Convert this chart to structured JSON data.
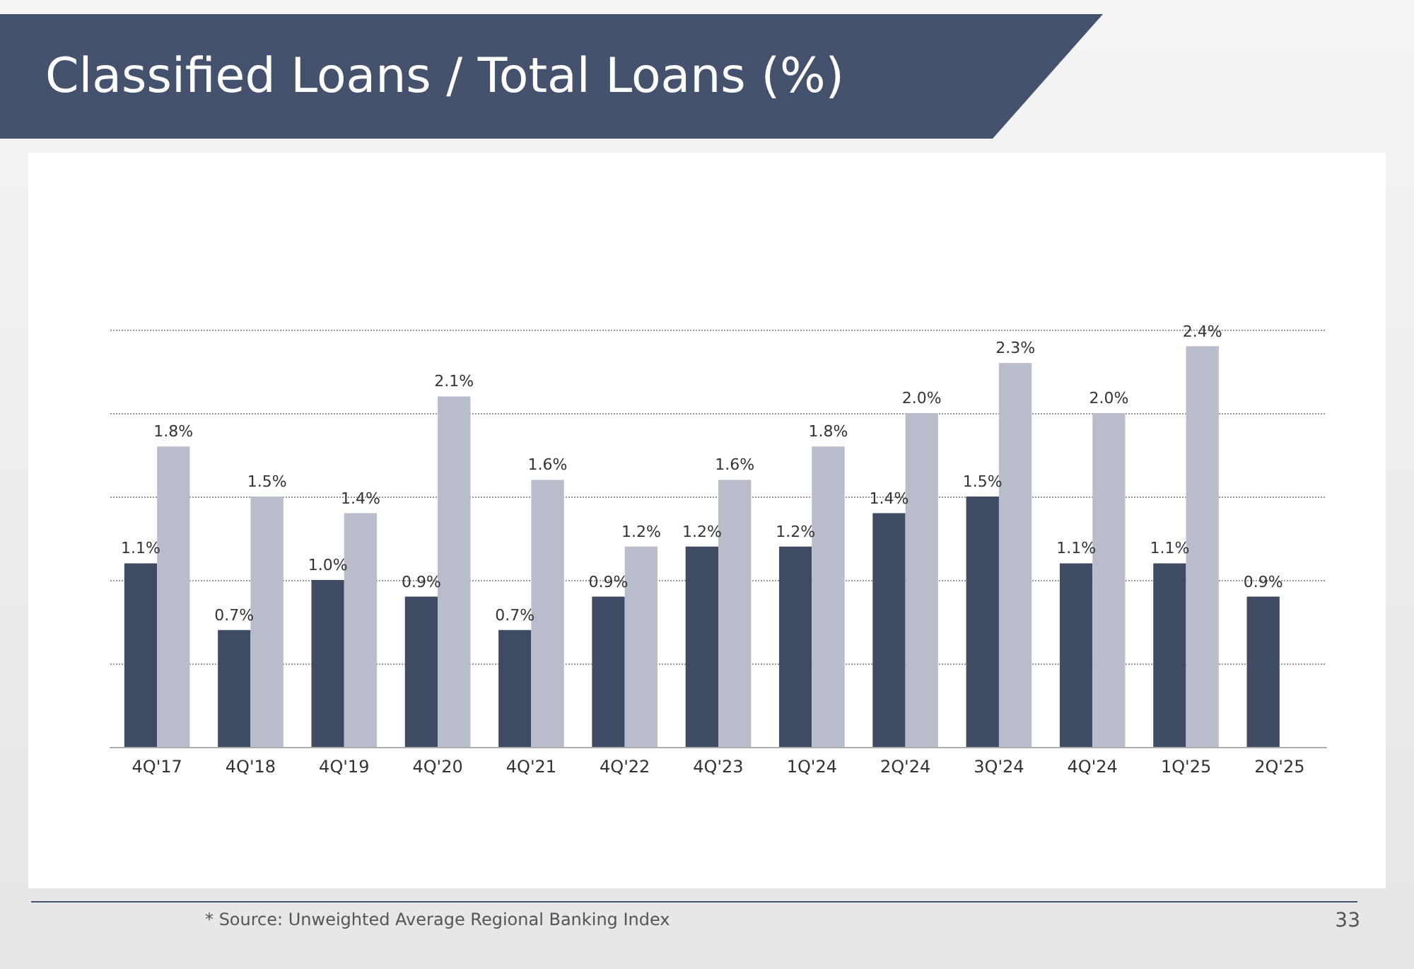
{
  "chart_data": {
    "type": "bar",
    "title": "Classified Loans / Total Loans (%)",
    "categories": [
      "4Q'17",
      "4Q'18",
      "4Q'19",
      "4Q'20",
      "4Q'21",
      "4Q'22",
      "4Q'23",
      "1Q'24",
      "2Q'24",
      "3Q'24",
      "4Q'24",
      "1Q'25",
      "2Q'25"
    ],
    "series": [
      {
        "color": "#3f4a63",
        "values": [
          1.1,
          0.7,
          1.0,
          0.9,
          0.7,
          0.9,
          1.2,
          1.2,
          1.4,
          1.5,
          1.1,
          1.1,
          0.9
        ],
        "value_labels": [
          "1.1%",
          "0.7%",
          "1.0%",
          "0.9%",
          "0.7%",
          "0.9%",
          "1.2%",
          "1.2%",
          "1.4%",
          "1.5%",
          "1.1%",
          "1.1%",
          "0.9%"
        ]
      },
      {
        "color": "#b8bccb",
        "values": [
          1.8,
          1.5,
          1.4,
          2.1,
          1.6,
          1.2,
          1.6,
          1.8,
          2.0,
          2.3,
          2.0,
          2.4,
          null
        ],
        "value_labels": [
          "1.8%",
          "1.5%",
          "1.4%",
          "2.1%",
          "1.6%",
          "1.2%",
          "1.6%",
          "1.8%",
          "2.0%",
          "2.3%",
          "2.0%",
          "2.4%",
          null
        ]
      }
    ],
    "ylim": [
      0,
      2.5
    ],
    "yticks": [
      0,
      0.5,
      1,
      1.5,
      2,
      2.5
    ],
    "grid": "y",
    "tick_labels": "x",
    "annotations": [
      "* Source: Unweighted Average Regional Banking Index",
      "33"
    ]
  }
}
